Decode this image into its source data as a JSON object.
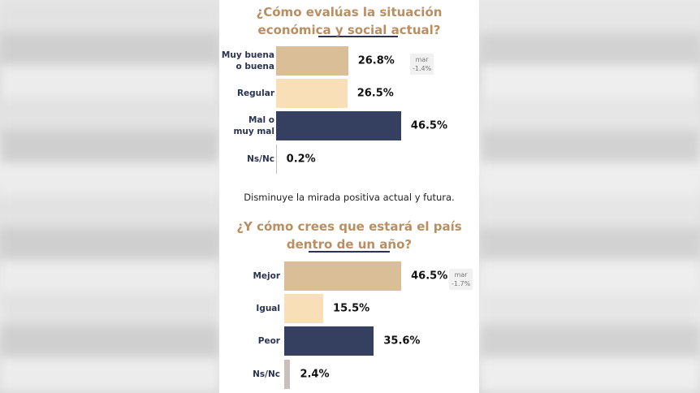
{
  "chart_data": [
    {
      "type": "bar",
      "orientation": "horizontal",
      "title_lines": [
        "¿Cómo evalúas la situación",
        "económica y social actual?"
      ],
      "categories": [
        "Muy buena\no buena",
        "Regular",
        "Mal o\nmuy mal",
        "Ns/Nc"
      ],
      "values": [
        26.8,
        26.5,
        46.5,
        0.2
      ],
      "value_labels": [
        "26.8%",
        "26.5%",
        "46.5%",
        "0.2%"
      ],
      "colors": [
        "#d9be97",
        "#f9dfb8",
        "#353f5f",
        "#c9bfbd"
      ],
      "annotation": [
        "mar",
        "-1.4%"
      ]
    },
    {
      "type": "bar",
      "orientation": "horizontal",
      "title_lines": [
        "¿Y cómo crees que estará el país",
        "dentro de un año?"
      ],
      "categories": [
        "Mejor",
        "Igual",
        "Peor",
        "Ns/Nc"
      ],
      "values": [
        46.5,
        15.5,
        35.6,
        2.4
      ],
      "value_labels": [
        "46.5%",
        "15.5%",
        "35.6%",
        "2.4%"
      ],
      "colors": [
        "#d9be97",
        "#f9dfb8",
        "#353f5f",
        "#c9bfbd"
      ],
      "annotation": [
        "mar",
        "-1.7%"
      ]
    }
  ],
  "note": "Disminuye la mirada positiva actual y futura."
}
